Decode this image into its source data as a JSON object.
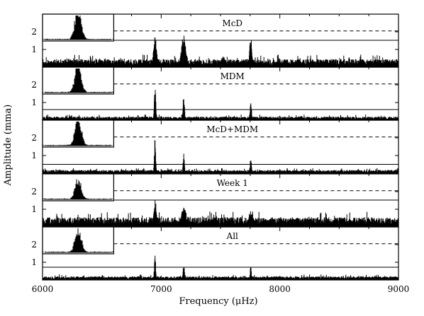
{
  "chart_data": {
    "type": "line",
    "xlabel": "Frequency (μHz)",
    "ylabel": "Amplitude (mma)",
    "xlim": [
      6000,
      9000
    ],
    "ylim": [
      0,
      3
    ],
    "x_ticks": [
      6000,
      7000,
      8000,
      9000
    ],
    "x_tick_labels": [
      "6000",
      "7000",
      "8000",
      "9000"
    ],
    "y_ticks": [
      1,
      2
    ],
    "y_tick_labels": [
      "1",
      "2"
    ],
    "panels": [
      {
        "label": "McD",
        "noise": 0.45,
        "solid_line": 1.52,
        "dashed_line": 2.05,
        "peaks": [
          {
            "f": 6948,
            "amp": 1.7,
            "width": 20
          },
          {
            "f": 7190,
            "amp": 1.85,
            "width": 28
          },
          {
            "f": 7755,
            "amp": 1.75,
            "width": 14
          },
          {
            "f": 7520,
            "amp": 0.6,
            "width": 40
          },
          {
            "f": 8150,
            "amp": 0.5,
            "width": 40
          }
        ],
        "inset_peak_amp": 2.3
      },
      {
        "label": "MDM",
        "noise": 0.2,
        "solid_line": 0.6,
        "dashed_line": 2.05,
        "peaks": [
          {
            "f": 6948,
            "amp": 2.05,
            "width": 9
          },
          {
            "f": 7190,
            "amp": 1.45,
            "width": 9
          },
          {
            "f": 7755,
            "amp": 1.2,
            "width": 9
          },
          {
            "f": 8180,
            "amp": 0.25,
            "width": 20
          }
        ],
        "inset_peak_amp": 2.0
      },
      {
        "label": "McD+MDM",
        "noise": 0.18,
        "solid_line": 0.5,
        "dashed_line": 2.05,
        "peaks": [
          {
            "f": 6948,
            "amp": 2.1,
            "width": 8
          },
          {
            "f": 7190,
            "amp": 1.35,
            "width": 8
          },
          {
            "f": 7755,
            "amp": 0.95,
            "width": 8
          }
        ],
        "inset_peak_amp": 2.0
      },
      {
        "label": "Week 1",
        "noise": 0.55,
        "solid_line": 1.52,
        "dashed_line": 2.05,
        "peaks": [
          {
            "f": 6948,
            "amp": 1.6,
            "width": 18
          },
          {
            "f": 7190,
            "amp": 1.3,
            "width": 25
          },
          {
            "f": 7755,
            "amp": 0.9,
            "width": 30
          }
        ],
        "inset_peak_amp": 1.4
      },
      {
        "label": "All",
        "noise": 0.2,
        "solid_line": 0.72,
        "dashed_line": 2.05,
        "peaks": [
          {
            "f": 6948,
            "amp": 1.45,
            "width": 8
          },
          {
            "f": 7190,
            "amp": 1.0,
            "width": 8
          },
          {
            "f": 7755,
            "amp": 0.8,
            "width": 8
          }
        ],
        "inset_peak_amp": 1.7
      }
    ]
  }
}
